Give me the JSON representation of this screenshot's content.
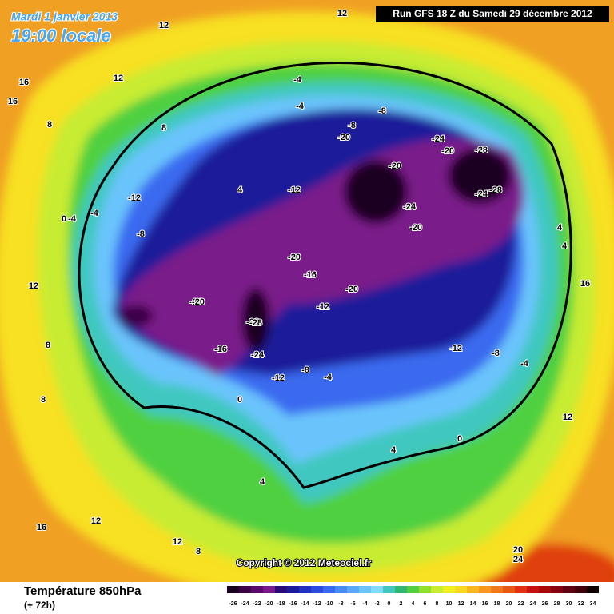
{
  "header": {
    "date": "Mardi 1 janvier 2013",
    "time": "19:00 locale",
    "run": "Run GFS 18 Z du Samedi 29 décembre 2012"
  },
  "copyright": "Copyright © 2012 Meteociel.fr",
  "footer": {
    "title": "Température 850hPa",
    "subtitle": "(+ 72h)"
  },
  "legend": {
    "values": [
      -26,
      -24,
      -22,
      -20,
      -18,
      -16,
      -14,
      -12,
      -10,
      -8,
      -6,
      -4,
      -2,
      0,
      2,
      4,
      6,
      8,
      10,
      12,
      14,
      16,
      18,
      20,
      22,
      24,
      26,
      28,
      30,
      32,
      34
    ],
    "colors": [
      "#1a0020",
      "#3c0046",
      "#5a0a6a",
      "#7a1a8a",
      "#2a0a78",
      "#1a1a9a",
      "#2030c0",
      "#2a4ae0",
      "#3a6af0",
      "#4a8af8",
      "#5aa8fa",
      "#6ac4fc",
      "#80dcf8",
      "#40c8c0",
      "#30b870",
      "#50d040",
      "#90e030",
      "#c8ec30",
      "#f0f020",
      "#f8d820",
      "#f8b820",
      "#f89820",
      "#f07818",
      "#e85810",
      "#e03010",
      "#c81010",
      "#a80808",
      "#880010",
      "#600010",
      "#400008",
      "#100000"
    ]
  },
  "contour_labels": [
    12,
    12,
    12,
    16,
    16,
    8,
    8,
    12,
    4,
    -4,
    -8,
    -8,
    -24,
    -20,
    -20,
    -28,
    -24,
    -28,
    -20,
    -24,
    -20,
    -12,
    -16,
    -20,
    -24,
    -28,
    -20,
    -12,
    -8,
    -4,
    -4,
    -12,
    -12,
    -8,
    -4,
    0,
    4,
    4,
    8,
    12,
    16,
    20,
    24,
    4,
    8,
    12,
    16,
    0,
    -4,
    -8,
    -12,
    -16,
    -20,
    -28,
    -24,
    12,
    8,
    4,
    0,
    -4
  ]
}
